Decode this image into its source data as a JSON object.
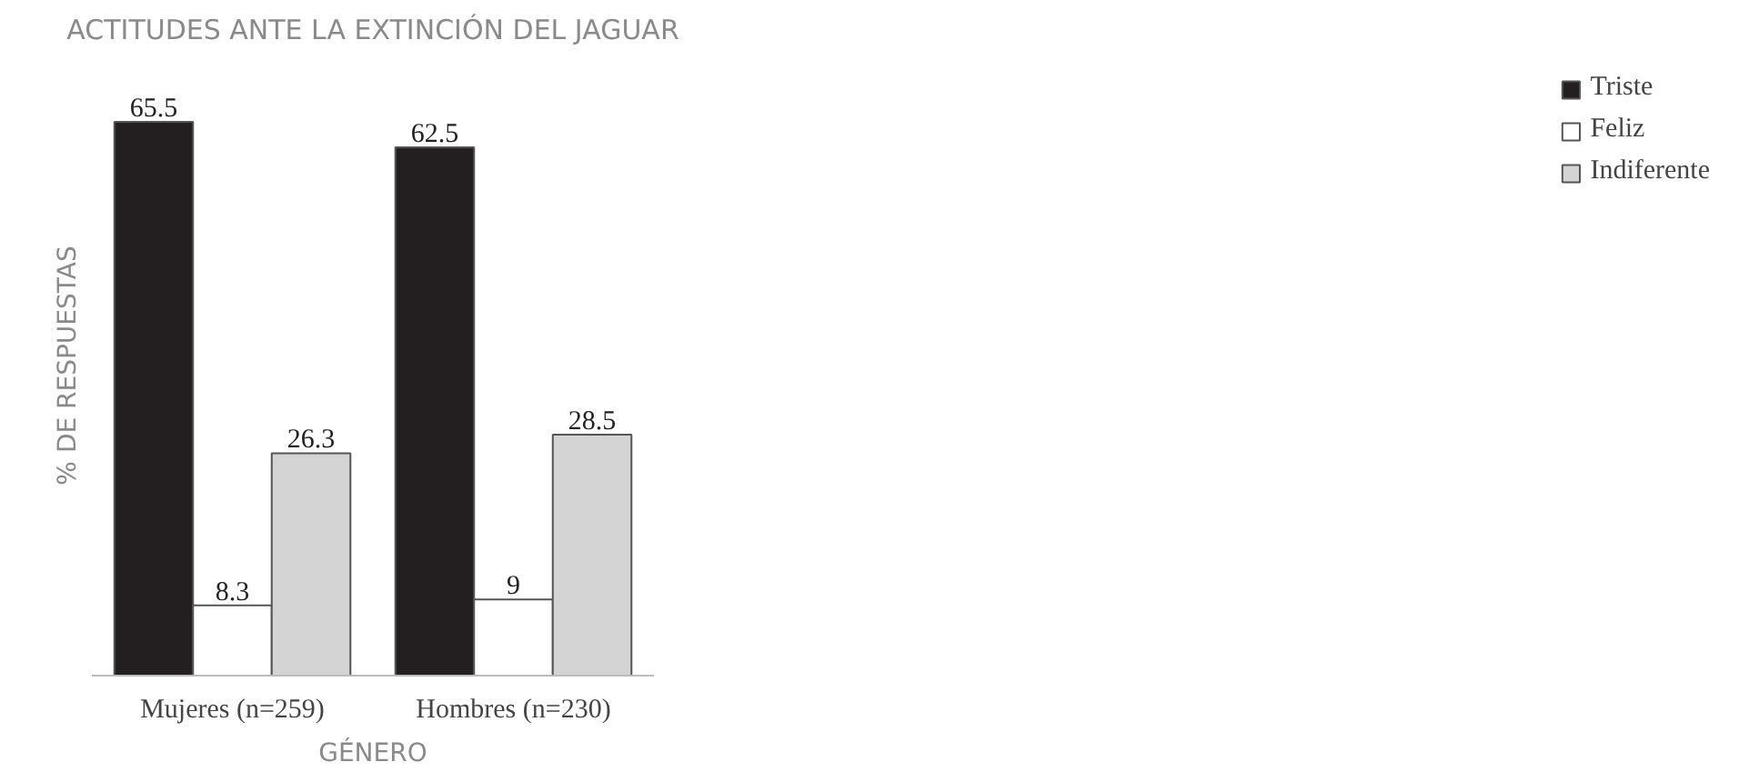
{
  "chart_data": {
    "type": "bar",
    "title": "ACTITUDES ANTE LA EXTINCIÓN DEL JAGUAR",
    "xlabel": "GÉNERO",
    "ylabel": "% DE RESPUESTAS",
    "categories": [
      "Mujeres (n=259)",
      "Hombres (n=230)"
    ],
    "series": [
      {
        "name": "Triste",
        "color": "#231f20",
        "values": [
          65.5,
          62.5
        ]
      },
      {
        "name": "Feliz",
        "color": "#ffffff",
        "values": [
          8.3,
          9
        ]
      },
      {
        "name": "Indiferente",
        "color": "#d4d4d4",
        "values": [
          26.3,
          28.5
        ]
      }
    ],
    "data_labels": true,
    "legend": "right",
    "grid": false
  }
}
